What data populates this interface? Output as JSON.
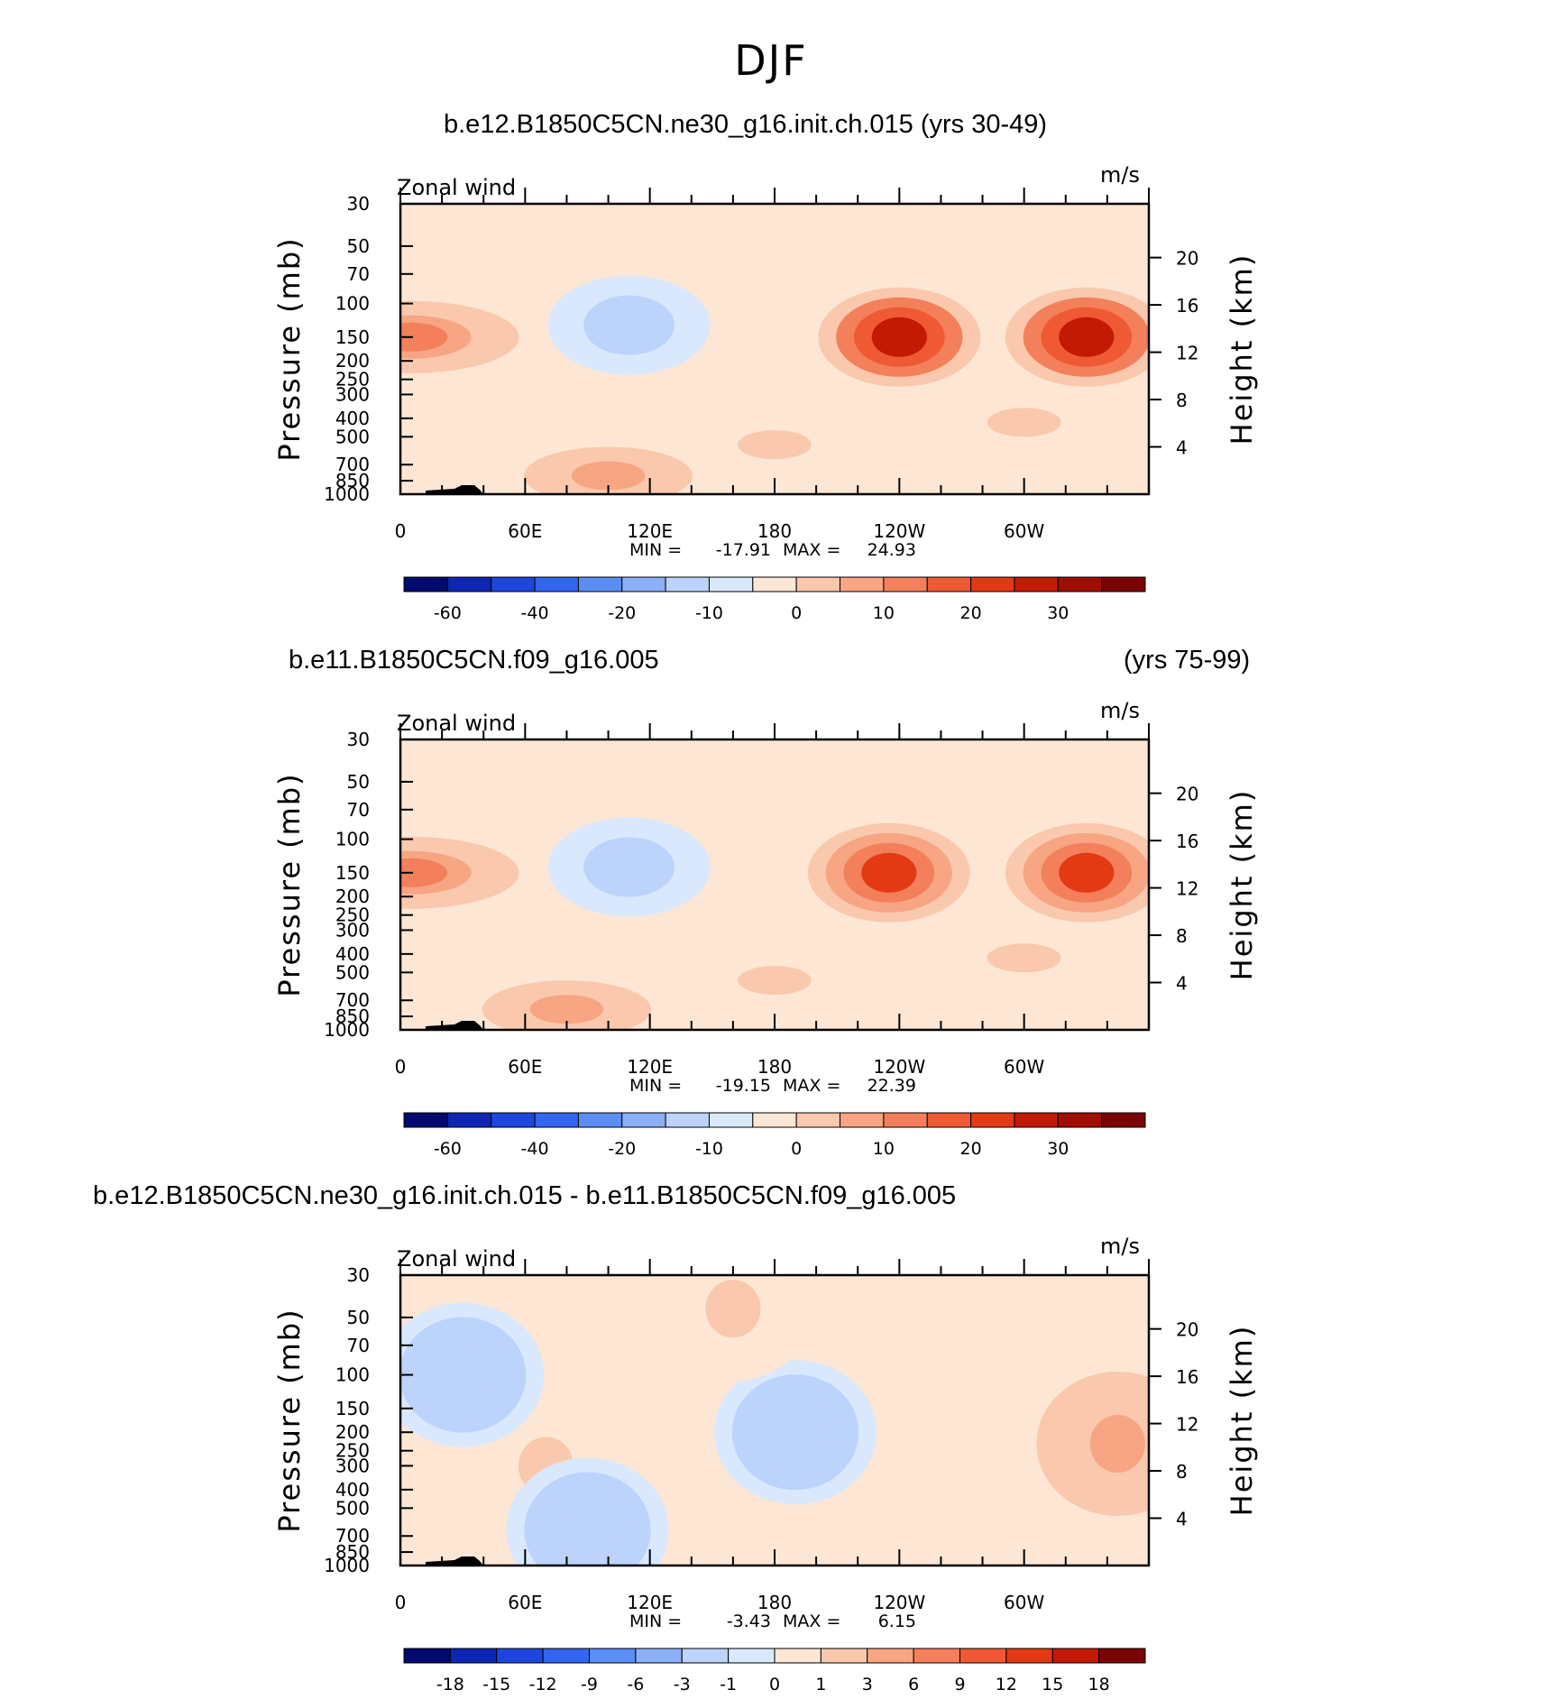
{
  "page_title": "DJF",
  "chart_data": [
    {
      "type": "contour",
      "title": "b.e12.B1850C5CN.ne30_g16.init.ch.015 (yrs 30-49)",
      "title_left": "",
      "title_right": "",
      "field_label": "Zonal wind",
      "units": "m/s",
      "ylabel": "Pressure (mb)",
      "y2label": "Height (km)",
      "yticks": [
        30,
        50,
        70,
        100,
        150,
        200,
        250,
        300,
        400,
        500,
        700,
        850,
        1000
      ],
      "ylim": [
        1000,
        30
      ],
      "y2ticks": [
        20,
        16,
        12,
        8,
        4
      ],
      "xticks": [
        "0",
        "60E",
        "120E",
        "180",
        "120W",
        "60W"
      ],
      "xlim": [
        0,
        360
      ],
      "min_label": "MIN =",
      "min_value": "-17.91",
      "max_label": "MAX =",
      "max_value": "24.93",
      "colorbar_labels": [
        "-60",
        "-40",
        "-20",
        "-10",
        "0",
        "10",
        "20",
        "30"
      ],
      "colorbar_levels": [
        -70,
        -60,
        -50,
        -40,
        -30,
        -20,
        -15,
        -10,
        -5,
        0,
        5,
        10,
        15,
        20,
        25,
        30,
        35,
        40
      ],
      "colorbar_colors": [
        "#000a6e",
        "#0d27b4",
        "#1e46de",
        "#3366f0",
        "#5b8ef5",
        "#8bb0f8",
        "#bcd3fb",
        "#d9e8fc",
        "#fde6d4",
        "#fac8ad",
        "#f7a583",
        "#f3805b",
        "#ef5a35",
        "#e33a14",
        "#c21a05",
        "#a00d03",
        "#7a0403"
      ],
      "cells": [
        {
          "lon": 180,
          "p": 550,
          "v": 0
        },
        {
          "lon": 300,
          "p": 420,
          "v": 0
        },
        {
          "lon": 100,
          "p": 800,
          "v": 5
        },
        {
          "lon": 240,
          "p": 150,
          "v": 25
        },
        {
          "lon": 330,
          "p": 150,
          "v": 25
        },
        {
          "lon": 5,
          "p": 150,
          "v": 10
        },
        {
          "lon": 110,
          "p": 130,
          "v": -15
        }
      ]
    },
    {
      "type": "contour",
      "title": "",
      "title_left": "b.e11.B1850C5CN.f09_g16.005",
      "title_right": "(yrs 75-99)",
      "field_label": "Zonal wind",
      "units": "m/s",
      "ylabel": "Pressure (mb)",
      "y2label": "Height (km)",
      "yticks": [
        30,
        50,
        70,
        100,
        150,
        200,
        250,
        300,
        400,
        500,
        700,
        850,
        1000
      ],
      "ylim": [
        1000,
        30
      ],
      "y2ticks": [
        20,
        16,
        12,
        8,
        4
      ],
      "xticks": [
        "0",
        "60E",
        "120E",
        "180",
        "120W",
        "60W"
      ],
      "xlim": [
        0,
        360
      ],
      "min_label": "MIN =",
      "min_value": "-19.15",
      "max_label": "MAX =",
      "max_value": "22.39",
      "colorbar_labels": [
        "-60",
        "-40",
        "-20",
        "-10",
        "0",
        "10",
        "20",
        "30"
      ],
      "colorbar_levels": [
        -70,
        -60,
        -50,
        -40,
        -30,
        -20,
        -15,
        -10,
        -5,
        0,
        5,
        10,
        15,
        20,
        25,
        30,
        35,
        40
      ],
      "colorbar_colors": [
        "#000a6e",
        "#0d27b4",
        "#1e46de",
        "#3366f0",
        "#5b8ef5",
        "#8bb0f8",
        "#bcd3fb",
        "#d9e8fc",
        "#fde6d4",
        "#fac8ad",
        "#f7a583",
        "#f3805b",
        "#ef5a35",
        "#e33a14",
        "#c21a05",
        "#a00d03",
        "#7a0403"
      ],
      "cells": [
        {
          "lon": 180,
          "p": 550,
          "v": 0
        },
        {
          "lon": 300,
          "p": 420,
          "v": 0
        },
        {
          "lon": 80,
          "p": 780,
          "v": 5
        },
        {
          "lon": 235,
          "p": 150,
          "v": 20
        },
        {
          "lon": 330,
          "p": 150,
          "v": 20
        },
        {
          "lon": 5,
          "p": 150,
          "v": 10
        },
        {
          "lon": 110,
          "p": 140,
          "v": -15
        }
      ]
    },
    {
      "type": "contour",
      "title": "",
      "title_left": "b.e12.B1850C5CN.ne30_g16.init.ch.015 - b.e11.B1850C5CN.f09_g16.005",
      "title_right": "",
      "field_label": "Zonal wind",
      "units": "m/s",
      "ylabel": "Pressure (mb)",
      "y2label": "Height (km)",
      "yticks": [
        30,
        50,
        70,
        100,
        150,
        200,
        250,
        300,
        400,
        500,
        700,
        850,
        1000
      ],
      "ylim": [
        1000,
        30
      ],
      "y2ticks": [
        20,
        16,
        12,
        8,
        4
      ],
      "xticks": [
        "0",
        "60E",
        "120E",
        "180",
        "120W",
        "60W"
      ],
      "xlim": [
        0,
        360
      ],
      "min_label": "MIN =",
      "min_value": "-3.43",
      "max_label": "MAX =",
      "max_value": "6.15",
      "colorbar_labels": [
        "-18",
        "-15",
        "-12",
        "-9",
        "-6",
        "-3",
        "-1",
        "0",
        "1",
        "3",
        "6",
        "9",
        "12",
        "15",
        "18"
      ],
      "colorbar_levels": [
        -21,
        -18,
        -15,
        -12,
        -9,
        -6,
        -3,
        -1,
        0,
        1,
        3,
        6,
        9,
        12,
        15,
        18,
        21
      ],
      "colorbar_colors": [
        "#000a6e",
        "#0d27b4",
        "#1e46de",
        "#3366f0",
        "#5b8ef5",
        "#8bb0f8",
        "#bcd3fb",
        "#d9e8fc",
        "#fde6d4",
        "#fac8ad",
        "#f7a583",
        "#f3805b",
        "#ef5a35",
        "#e33a14",
        "#c21a05",
        "#7a0403"
      ],
      "cells": [
        {
          "lon": 70,
          "p": 300,
          "v": 1
        },
        {
          "lon": 190,
          "p": 200,
          "v": -3
        },
        {
          "lon": 90,
          "p": 650,
          "v": -3
        },
        {
          "lon": 30,
          "p": 100,
          "v": -3
        },
        {
          "lon": 345,
          "p": 230,
          "v": 3
        },
        {
          "lon": 160,
          "p": 45,
          "v": 1
        }
      ]
    }
  ]
}
